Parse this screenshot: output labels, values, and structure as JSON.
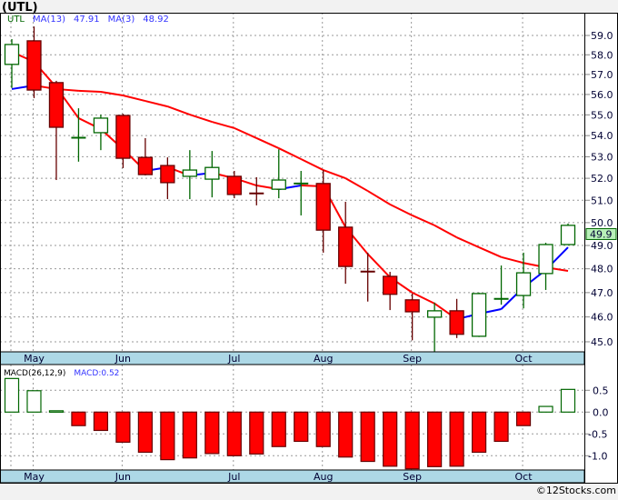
{
  "chart_data": [
    {
      "type": "candlestick",
      "title": "(UTL)",
      "legend": {
        "symbol": "UTL",
        "ma13_label": "MA(13)",
        "ma13_value": "47.91",
        "ma3_label": "MA(3)",
        "ma3_value": "48.92"
      },
      "last_price_label": "49.9",
      "y_scale": "log",
      "ylim": [
        44.5,
        59.5
      ],
      "yticks": [
        "45.0",
        "46.0",
        "47.0",
        "48.0",
        "49.0",
        "50.0",
        "51.0",
        "52.0",
        "53.0",
        "54.0",
        "55.0",
        "56.0",
        "57.0",
        "58.0",
        "59.0"
      ],
      "months": [
        {
          "label": "May",
          "index": 1
        },
        {
          "label": "Jun",
          "index": 5
        },
        {
          "label": "Jul",
          "index": 10
        },
        {
          "label": "Aug",
          "index": 14
        },
        {
          "label": "Sep",
          "index": 18
        },
        {
          "label": "Oct",
          "index": 23
        }
      ],
      "candles": [
        {
          "o": 57.51,
          "h": 58.81,
          "l": 56.32,
          "c": 58.53
        },
        {
          "o": 58.72,
          "h": 59.47,
          "l": 55.82,
          "c": 56.22
        },
        {
          "o": 56.59,
          "h": 56.68,
          "l": 51.92,
          "c": 54.4
        },
        {
          "o": 53.88,
          "h": 55.32,
          "l": 52.77,
          "c": 53.9
        },
        {
          "o": 54.14,
          "h": 55.01,
          "l": 53.31,
          "c": 54.84
        },
        {
          "o": 54.97,
          "h": 55.05,
          "l": 52.47,
          "c": 52.93
        },
        {
          "o": 52.97,
          "h": 53.88,
          "l": 52.13,
          "c": 52.17
        },
        {
          "o": 52.59,
          "h": 52.97,
          "l": 51.05,
          "c": 51.8
        },
        {
          "o": 52.09,
          "h": 53.31,
          "l": 51.05,
          "c": 52.38
        },
        {
          "o": 51.96,
          "h": 53.27,
          "l": 51.13,
          "c": 52.5
        },
        {
          "o": 52.09,
          "h": 52.34,
          "l": 51.09,
          "c": 51.26
        },
        {
          "o": 51.31,
          "h": 52.05,
          "l": 50.77,
          "c": 51.3
        },
        {
          "o": 51.5,
          "h": 53.35,
          "l": 51.09,
          "c": 51.92
        },
        {
          "o": 51.75,
          "h": 52.34,
          "l": 50.32,
          "c": 51.76
        },
        {
          "o": 51.76,
          "h": 52.38,
          "l": 48.69,
          "c": 49.67
        },
        {
          "o": 49.8,
          "h": 50.93,
          "l": 47.37,
          "c": 48.1
        },
        {
          "o": 47.88,
          "h": 48.69,
          "l": 46.63,
          "c": 47.87
        },
        {
          "o": 47.68,
          "h": 47.87,
          "l": 46.28,
          "c": 46.93
        },
        {
          "o": 46.7,
          "h": 46.96,
          "l": 45.06,
          "c": 46.21
        },
        {
          "o": 45.99,
          "h": 46.59,
          "l": 44.57,
          "c": 46.25
        },
        {
          "o": 46.25,
          "h": 46.74,
          "l": 45.15,
          "c": 45.3
        },
        {
          "o": 45.22,
          "h": 47.0,
          "l": 45.19,
          "c": 46.96
        },
        {
          "o": 46.73,
          "h": 48.14,
          "l": 46.5,
          "c": 46.74
        },
        {
          "o": 46.88,
          "h": 48.69,
          "l": 46.35,
          "c": 47.83
        },
        {
          "o": 47.8,
          "h": 49.12,
          "l": 47.11,
          "c": 49.04
        },
        {
          "o": 49.04,
          "h": 49.96,
          "l": 49.04,
          "c": 49.88
        }
      ],
      "series": [
        {
          "name": "MA(13)",
          "values": [
            56.27,
            56.45,
            56.27,
            56.18,
            56.13,
            55.95,
            55.68,
            55.41,
            55.01,
            54.66,
            54.36,
            53.88,
            53.4,
            52.89,
            52.38,
            52.0,
            51.42,
            50.81,
            50.32,
            49.88,
            49.35,
            48.92,
            48.5,
            48.25,
            48.06,
            47.91
          ]
        },
        {
          "name": "MA(3)",
          "values": [
            58.15,
            57.64,
            56.36,
            54.84,
            54.31,
            53.36,
            52.34,
            52.51,
            52.13,
            52.25,
            52.0,
            51.67,
            51.5,
            51.67,
            51.63,
            49.8,
            48.63,
            47.64,
            47.0,
            46.55,
            45.91,
            46.13,
            46.32,
            47.22,
            47.95,
            48.92
          ]
        }
      ],
      "colors": {
        "up": "#006600",
        "down": "#ff0000",
        "down_border": "#660000",
        "ma_down": "#ff0000",
        "ma_up": "#0000ff",
        "band": "#add8e6",
        "price_tag": "#b8f0b8"
      }
    },
    {
      "type": "bar",
      "title": "MACD(26,12,9)",
      "value_label": "MACD:0.52",
      "ylim": [
        -1.3,
        1.0
      ],
      "yticks": [
        {
          "v": 0.5,
          "label": "0.5"
        },
        {
          "v": 0.0,
          "label": "0.0"
        },
        {
          "v": -0.5,
          "label": "-0.5"
        },
        {
          "v": -1.0,
          "label": "-1.0"
        }
      ],
      "values": [
        0.77,
        0.49,
        0.03,
        -0.31,
        -0.42,
        -0.69,
        -0.92,
        -1.09,
        -1.05,
        -0.95,
        -1.0,
        -0.96,
        -0.79,
        -0.67,
        -0.79,
        -1.03,
        -1.13,
        -1.24,
        -1.3,
        -1.25,
        -1.24,
        -0.92,
        -0.67,
        -0.31,
        0.13,
        0.52
      ]
    }
  ],
  "footer": "©12Stocks.com"
}
